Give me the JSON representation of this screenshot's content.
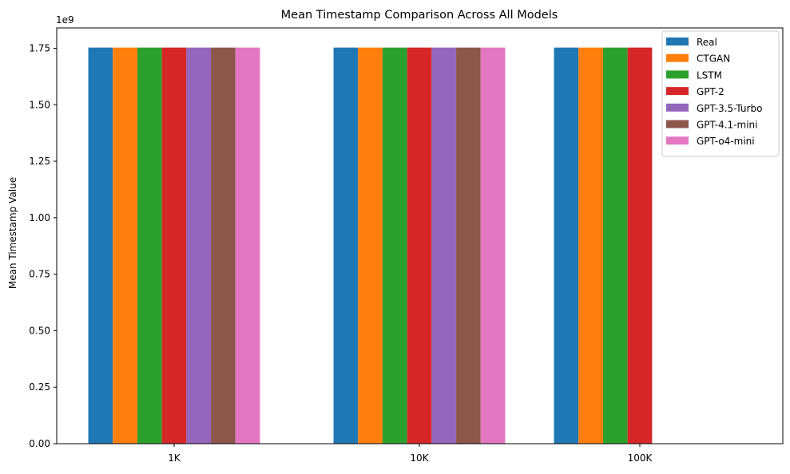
{
  "chart_data": {
    "type": "bar",
    "title": "Mean Timestamp Comparison Across All Models",
    "xlabel": "",
    "ylabel": "Mean Timestamp Value",
    "offset_label": "1e9",
    "categories": [
      "1K",
      "10K",
      "100K"
    ],
    "ylim": [
      0,
      1.84
    ],
    "yticks": [
      "0.00",
      "0.25",
      "0.50",
      "0.75",
      "1.00",
      "1.25",
      "1.50",
      "1.75"
    ],
    "ytick_values": [
      0,
      0.25,
      0.5,
      0.75,
      1.0,
      1.25,
      1.5,
      1.75
    ],
    "grid": false,
    "legend_position": "top-right",
    "series": [
      {
        "name": "Real",
        "color": "#1f77b4",
        "values": [
          1.753,
          1.753,
          1.753
        ]
      },
      {
        "name": "CTGAN",
        "color": "#ff7f0e",
        "values": [
          1.753,
          1.753,
          1.753
        ]
      },
      {
        "name": "LSTM",
        "color": "#2ca02c",
        "values": [
          1.753,
          1.753,
          1.753
        ]
      },
      {
        "name": "GPT-2",
        "color": "#d62728",
        "values": [
          1.753,
          1.753,
          1.753
        ]
      },
      {
        "name": "GPT-3.5-Turbo",
        "color": "#9467bd",
        "values": [
          1.753,
          1.753,
          null
        ]
      },
      {
        "name": "GPT-4.1-mini",
        "color": "#8c564b",
        "values": [
          1.753,
          1.753,
          null
        ]
      },
      {
        "name": "GPT-o4-mini",
        "color": "#e377c2",
        "values": [
          1.753,
          1.753,
          null
        ]
      }
    ]
  }
}
